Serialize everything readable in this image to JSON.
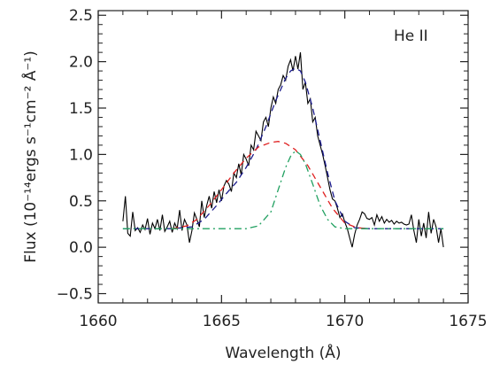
{
  "chart_data": {
    "type": "line",
    "title": "",
    "annotation": "He II",
    "xlabel": "Wavelength (Å)",
    "ylabel": "Flux (10⁻¹⁴ergs s⁻¹cm⁻² Å⁻¹)",
    "xlim": [
      1660,
      1675
    ],
    "ylim": [
      -0.6,
      2.55
    ],
    "x_ticks": [
      1660,
      1665,
      1670,
      1675
    ],
    "x_tick_labels": [
      "1660",
      "1665",
      "1670",
      "1675"
    ],
    "y_ticks": [
      -0.5,
      0.0,
      0.5,
      1.0,
      1.5,
      2.0,
      2.5
    ],
    "y_tick_labels": [
      "−0.5",
      "0.0",
      "0.5",
      "1.0",
      "1.5",
      "2.0",
      "2.5"
    ],
    "grid": false,
    "series": [
      {
        "style": "solid",
        "color": "#000000",
        "x": [
          1661.0,
          1661.1,
          1661.2,
          1661.3,
          1661.4,
          1661.5,
          1661.6,
          1661.7,
          1661.8,
          1661.9,
          1662.0,
          1662.1,
          1662.2,
          1662.3,
          1662.4,
          1662.5,
          1662.6,
          1662.7,
          1662.8,
          1662.9,
          1663.0,
          1663.1,
          1663.2,
          1663.3,
          1663.4,
          1663.5,
          1663.6,
          1663.7,
          1663.8,
          1663.9,
          1664.0,
          1664.1,
          1664.2,
          1664.3,
          1664.4,
          1664.5,
          1664.6,
          1664.7,
          1664.8,
          1664.9,
          1665.0,
          1665.1,
          1665.2,
          1665.3,
          1665.4,
          1665.5,
          1665.6,
          1665.7,
          1665.8,
          1665.9,
          1666.0,
          1666.1,
          1666.2,
          1666.3,
          1666.4,
          1666.5,
          1666.6,
          1666.7,
          1666.8,
          1666.9,
          1667.0,
          1667.1,
          1667.2,
          1667.3,
          1667.4,
          1667.5,
          1667.6,
          1667.7,
          1667.8,
          1667.9,
          1668.0,
          1668.1,
          1668.2,
          1668.3,
          1668.4,
          1668.5,
          1668.6,
          1668.7,
          1668.8,
          1668.9,
          1669.0,
          1669.1,
          1669.2,
          1669.3,
          1669.4,
          1669.5,
          1669.6,
          1669.7,
          1669.8,
          1669.9,
          1670.0,
          1670.1,
          1670.2,
          1670.3,
          1670.4,
          1670.5,
          1670.6,
          1670.7,
          1670.8,
          1670.9,
          1671.0,
          1671.1,
          1671.2,
          1671.3,
          1671.4,
          1671.5,
          1671.6,
          1671.7,
          1671.8,
          1671.9,
          1672.0,
          1672.1,
          1672.2,
          1672.3,
          1672.4,
          1672.5,
          1672.6,
          1672.7,
          1672.8,
          1672.9,
          1673.0,
          1673.1,
          1673.2,
          1673.3,
          1673.4,
          1673.5,
          1673.6,
          1673.7,
          1673.8,
          1673.9,
          1674.0
        ],
        "y": [
          0.28,
          0.55,
          0.15,
          0.12,
          0.38,
          0.18,
          0.21,
          0.16,
          0.24,
          0.19,
          0.31,
          0.14,
          0.26,
          0.2,
          0.3,
          0.18,
          0.35,
          0.17,
          0.22,
          0.28,
          0.16,
          0.26,
          0.2,
          0.4,
          0.18,
          0.3,
          0.24,
          0.05,
          0.18,
          0.37,
          0.3,
          0.22,
          0.5,
          0.32,
          0.45,
          0.55,
          0.42,
          0.6,
          0.48,
          0.62,
          0.5,
          0.66,
          0.72,
          0.68,
          0.6,
          0.8,
          0.75,
          0.9,
          0.78,
          1.0,
          0.95,
          0.88,
          1.1,
          1.05,
          1.25,
          1.2,
          1.15,
          1.35,
          1.4,
          1.3,
          1.5,
          1.62,
          1.55,
          1.7,
          1.75,
          1.85,
          1.8,
          1.95,
          2.02,
          1.9,
          2.06,
          1.92,
          2.1,
          1.7,
          1.78,
          1.55,
          1.6,
          1.35,
          1.4,
          1.2,
          1.1,
          1.0,
          0.88,
          0.75,
          0.62,
          0.52,
          0.5,
          0.42,
          0.32,
          0.36,
          0.27,
          0.2,
          0.1,
          0.0,
          0.14,
          0.24,
          0.3,
          0.38,
          0.36,
          0.31,
          0.3,
          0.32,
          0.24,
          0.35,
          0.28,
          0.33,
          0.26,
          0.3,
          0.27,
          0.29,
          0.25,
          0.28,
          0.26,
          0.27,
          0.25,
          0.24,
          0.25,
          0.35,
          0.18,
          0.05,
          0.3,
          0.12,
          0.26,
          0.1,
          0.38,
          0.15,
          0.3,
          0.22,
          0.05,
          0.2,
          0.0
        ]
      },
      {
        "style": "dashed",
        "color": "#1a1a8c",
        "x": [
          1661.0,
          1662.0,
          1663.0,
          1663.8,
          1664.3,
          1664.8,
          1665.2,
          1665.6,
          1666.0,
          1666.4,
          1666.8,
          1667.2,
          1667.6,
          1667.8,
          1668.0,
          1668.2,
          1668.4,
          1668.7,
          1669.0,
          1669.3,
          1669.6,
          1670.0,
          1670.4,
          1671.0,
          1672.0,
          1673.0,
          1674.0
        ],
        "y": [
          0.2,
          0.2,
          0.2,
          0.22,
          0.3,
          0.45,
          0.58,
          0.7,
          0.86,
          1.05,
          1.3,
          1.58,
          1.82,
          1.9,
          1.93,
          1.9,
          1.78,
          1.5,
          1.15,
          0.8,
          0.5,
          0.28,
          0.21,
          0.2,
          0.2,
          0.2,
          0.2
        ]
      },
      {
        "style": "dashed",
        "color": "#e02020",
        "x": [
          1663.0,
          1663.6,
          1664.0,
          1664.5,
          1665.0,
          1665.5,
          1666.0,
          1666.5,
          1667.0,
          1667.3,
          1667.6,
          1668.0,
          1668.5,
          1669.0,
          1669.5,
          1670.0,
          1670.5,
          1671.0
        ],
        "y": [
          0.2,
          0.23,
          0.3,
          0.45,
          0.62,
          0.8,
          0.96,
          1.08,
          1.13,
          1.14,
          1.12,
          1.05,
          0.88,
          0.65,
          0.42,
          0.26,
          0.21,
          0.2
        ]
      },
      {
        "style": "dashdot",
        "color": "#20a060",
        "x": [
          1661.0,
          1662.0,
          1663.0,
          1664.0,
          1665.0,
          1666.0,
          1666.5,
          1667.0,
          1667.3,
          1667.6,
          1667.8,
          1668.0,
          1668.2,
          1668.4,
          1668.7,
          1669.0,
          1669.3,
          1669.6,
          1670.0,
          1671.0,
          1672.0,
          1673.0,
          1674.0
        ],
        "y": [
          0.2,
          0.2,
          0.2,
          0.2,
          0.2,
          0.2,
          0.23,
          0.38,
          0.62,
          0.86,
          0.98,
          1.04,
          1.0,
          0.9,
          0.68,
          0.45,
          0.3,
          0.22,
          0.2,
          0.2,
          0.2,
          0.2,
          0.2
        ]
      }
    ]
  }
}
